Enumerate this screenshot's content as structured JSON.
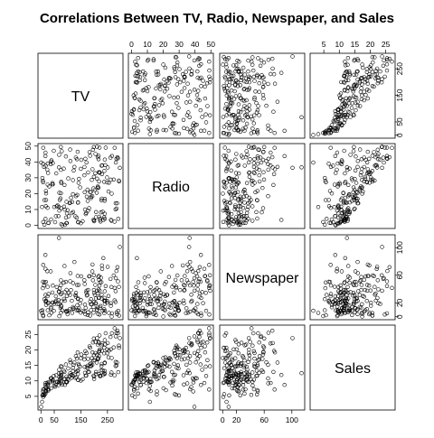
{
  "chart_data": {
    "type": "scatter",
    "title": "Correlations Between TV, Radio, Newspaper, and Sales",
    "variables": [
      "TV",
      "Radio",
      "Newspaper",
      "Sales"
    ],
    "ranges": {
      "TV": [
        0.7,
        296.4
      ],
      "Radio": [
        0,
        49.6
      ],
      "Newspaper": [
        0.3,
        114
      ],
      "Sales": [
        1.6,
        27
      ]
    },
    "ticks": {
      "TV": [
        0,
        50,
        150,
        250
      ],
      "Radio": [
        0,
        10,
        20,
        30,
        40,
        50
      ],
      "Newspaper": [
        0,
        20,
        60,
        100
      ],
      "Sales": [
        5,
        10,
        15,
        20,
        25
      ]
    },
    "axes": {
      "top": [
        {
          "panel_col": 1,
          "var": "Radio",
          "labels": [
            "0",
            "10",
            "20",
            "30",
            "40",
            "50"
          ]
        },
        {
          "panel_col": 3,
          "var": "Sales",
          "labels": [
            "5",
            "10",
            "15",
            "20",
            "25"
          ]
        }
      ],
      "bottom": [
        {
          "panel_col": 0,
          "var": "TV",
          "labels": [
            "0",
            "50",
            "150",
            "250"
          ]
        },
        {
          "panel_col": 2,
          "var": "Newspaper",
          "labels": [
            "0",
            "20",
            "60",
            "100"
          ]
        }
      ],
      "left": [
        {
          "panel_row": 1,
          "var": "Radio",
          "labels": [
            "0",
            "10",
            "20",
            "30",
            "40",
            "50"
          ]
        },
        {
          "panel_row": 3,
          "var": "Sales",
          "labels": [
            "5",
            "10",
            "15",
            "20",
            "25"
          ]
        }
      ],
      "right": [
        {
          "panel_row": 0,
          "var": "TV",
          "labels": [
            "0",
            "50",
            "150",
            "250"
          ]
        },
        {
          "panel_row": 2,
          "var": "Newspaper",
          "labels": [
            "0",
            "20",
            "60",
            "100"
          ]
        }
      ]
    },
    "observations": {
      "TV": [
        230.1,
        44.5,
        17.2,
        151.5,
        180.8,
        8.7,
        57.5,
        120.2,
        8.6,
        199.8,
        66.1,
        214.7,
        23.8,
        97.5,
        204.1,
        195.4,
        67.8,
        281.4,
        69.2,
        147.3,
        218.4,
        237.4,
        13.2,
        228.3,
        62.3,
        262.9,
        142.9,
        240.1,
        248.8,
        70.6,
        292.9,
        112.9,
        97.2,
        265.6,
        95.7,
        290.7,
        266.9,
        74.7,
        43.1,
        228,
        202.5,
        177,
        293.6,
        206.9,
        25.1,
        175.1,
        89.7,
        239.9,
        227.2,
        66.9,
        199.8,
        100.4,
        216.4,
        182.6,
        262.7,
        198.9,
        7.3,
        136.2,
        210.8,
        210.7,
        53.5,
        261.3,
        239.3,
        102.7,
        131.1,
        69,
        31.5,
        139.3,
        237.4,
        216.8,
        199.1,
        109.8,
        26.8,
        129.4,
        213.4,
        16.9,
        27.5,
        120.5,
        5.4,
        116,
        76.4,
        239.8,
        75.3,
        68.4,
        213.5,
        193.2,
        76.3,
        110.7,
        88.3,
        109.8,
        134.3,
        28.6,
        217.7,
        250.9,
        107.4,
        163.3,
        197.6,
        184.9,
        289.7,
        135.2,
        222.4,
        296.4,
        280.2,
        187.9,
        238.2,
        137.9,
        25,
        90.4,
        13.1,
        255.4,
        225.8,
        241.7,
        175.7,
        209.6,
        78.2,
        75.1,
        139.2,
        76.4,
        125.7,
        19.4,
        141.3,
        18.8,
        224,
        123.1,
        229.5,
        87.2,
        7.8,
        80.2,
        220.3,
        59.6,
        0.7,
        265.2,
        8.4,
        219.8,
        36.9,
        48.3,
        25.6,
        273.7,
        43,
        184.9,
        73.4,
        193.7,
        220.5,
        104.6,
        96.2,
        140.3,
        240.1,
        243.2,
        38,
        44.7,
        280.7,
        121,
        197.6,
        171.3,
        187.8,
        4.1,
        93.9,
        149.8,
        11.7,
        131.7,
        172.5,
        85.7,
        188.4,
        163.5,
        117.2,
        234.5,
        17.9,
        206.8,
        215.4,
        284.3,
        50,
        164.5,
        19.6,
        168.4,
        222.4,
        276.9,
        248.4,
        170.2,
        276.7,
        165.6,
        156.6,
        218.5,
        56.2,
        287.6,
        253.8,
        205,
        139.5,
        191.1,
        286,
        18.7,
        39.5,
        75.5,
        17.2,
        166.8,
        149.7,
        38.2,
        94.2,
        177,
        283.6,
        232.1
      ],
      "Radio": [
        37.8,
        39.3,
        45.9,
        41.3,
        10.8,
        48.9,
        32.8,
        19.6,
        2.1,
        2.6,
        5.8,
        24,
        35.1,
        7.6,
        32.9,
        47.7,
        36.6,
        39.6,
        20.5,
        23.9,
        27.7,
        5.1,
        15.9,
        16.9,
        12.6,
        3.5,
        29.3,
        16.7,
        27.1,
        16,
        28.3,
        17.4,
        1.5,
        20,
        1.4,
        4.1,
        43.8,
        49.4,
        26.7,
        37.7,
        22.3,
        33.4,
        27.7,
        8.4,
        25.7,
        22.5,
        9.9,
        41.5,
        15.8,
        11.7,
        3.1,
        9.6,
        41.7,
        46.2,
        28.8,
        49.4,
        28.1,
        19.2,
        49.6,
        29.5,
        2,
        42.7,
        15.5,
        29.6,
        42.8,
        9.3,
        24.6,
        14.5,
        27.5,
        43.9,
        30.6,
        14.3,
        33,
        5.7,
        24.6,
        43.7,
        1.6,
        28.5,
        29.9,
        7.7,
        26.7,
        4.1,
        20.3,
        44.5,
        43,
        18.4,
        27.5,
        40.6,
        25.5,
        47.8,
        4.9,
        1.5,
        33.5,
        36.5,
        14,
        31.6,
        3.5,
        21,
        42.3,
        41.7,
        4.3,
        36.3,
        10.1,
        17.2,
        34.3,
        46.4,
        11,
        0.3,
        0.4,
        26.9,
        8.2,
        38,
        15.4,
        20.6,
        46.8,
        35,
        14.3,
        0.8,
        36.9,
        16,
        26.8,
        21.7,
        2.4,
        34.6,
        32.3,
        11.8,
        38.9,
        0,
        49,
        12,
        39.6,
        2.9,
        27.2,
        33.5,
        38.6,
        47,
        39,
        28.9,
        25.9,
        43.9,
        17,
        35.4,
        33.2,
        5.7,
        14.8,
        1.9,
        7.3,
        49,
        40.3,
        25.8,
        13.9,
        8.4,
        23.3,
        39.7,
        21.1,
        11.6,
        43.5,
        1.3,
        36.9,
        18.4,
        18.1,
        35.8,
        18.1,
        36.8,
        14.7,
        3.4,
        37.6,
        5.2,
        23.6,
        10.6,
        11.6,
        20.9,
        20.1,
        7.1,
        3.4,
        48.9,
        30.2,
        7.8,
        2.3,
        10,
        2.6,
        5.4,
        5.7,
        43,
        21.3,
        45.1,
        2.1,
        28.7,
        13.9,
        12.1,
        41.1,
        10.8,
        4.1,
        42,
        35.6,
        3.7,
        4.9,
        9.3,
        42,
        8.6
      ],
      "Newspaper": [
        69.2,
        45.1,
        69.3,
        58.5,
        58.4,
        75,
        23.5,
        11.6,
        1,
        21.2,
        24.2,
        4,
        65.9,
        7.2,
        46,
        52.9,
        114,
        55.8,
        18.3,
        19.1,
        53.4,
        23.5,
        49.6,
        26.2,
        18.3,
        19.5,
        12.6,
        22.9,
        22.9,
        40.8,
        43.2,
        38.6,
        30,
        0.3,
        7.4,
        8.5,
        5,
        45.7,
        35.1,
        32,
        31.6,
        38.7,
        1.8,
        26.4,
        43.3,
        31.5,
        35.7,
        18.5,
        49.9,
        36.8,
        34.6,
        3.6,
        39.6,
        58.7,
        15.9,
        60,
        41.4,
        16.6,
        37.7,
        9.3,
        21.4,
        54.7,
        27.3,
        8.4,
        28.9,
        0.9,
        2.2,
        10.2,
        11,
        27.2,
        38.7,
        31.7,
        19.3,
        31.3,
        13.1,
        89.4,
        20.7,
        14.2,
        9.4,
        23.1,
        22.3,
        36.9,
        32.5,
        35.6,
        33.8,
        65.7,
        16,
        63.2,
        73.4,
        51.4,
        9.3,
        33,
        59,
        72.3,
        10.9,
        52.9,
        5.9,
        22,
        51.2,
        45.9,
        49.8,
        100.9,
        21.4,
        17.9,
        5.3,
        59,
        29.7,
        23.2,
        25.6,
        5.5,
        56.5,
        23.2,
        2.4,
        10.7,
        34.5,
        52.7,
        25.6,
        14.8,
        79.2,
        22.3,
        46.2,
        50.4,
        15.6,
        12.4,
        74.2,
        25.9,
        50.6,
        9.2,
        3.2,
        43.1,
        8.7,
        43,
        2.1,
        45.1,
        65.6,
        8.5,
        9.3,
        59.7,
        20.5,
        1.7,
        12.9,
        75.6,
        37.9,
        34.4,
        38.9,
        9,
        8.7,
        44.3,
        11.9,
        20.6,
        37,
        48.7,
        14.2,
        37.7,
        9.5,
        5.7,
        50.5,
        24.3,
        45.2,
        34.6,
        30.7,
        49.3,
        25.6,
        7.4,
        5.4,
        84.8,
        21.6,
        19.4,
        57.6,
        6.4,
        18.4,
        47.4,
        17,
        12.8,
        13.1,
        41.8,
        20.3,
        35.2,
        23.7,
        17.6,
        8.3,
        27.4,
        29.7,
        71.8,
        30,
        19.6,
        26.6,
        18.2,
        3.7,
        23.4,
        5.8,
        6,
        31.6,
        3.6,
        6,
        13.8,
        8.1,
        6.4,
        66.2,
        8.7
      ],
      "Sales": [
        22.1,
        10.4,
        9.3,
        18.5,
        12.9,
        7.2,
        11.8,
        13.2,
        4.8,
        10.6,
        8.6,
        17.4,
        9.2,
        9.7,
        19,
        22.4,
        12.5,
        24.4,
        11.3,
        14.6,
        18,
        12.5,
        5.6,
        15.5,
        9.7,
        12,
        15,
        15.9,
        18.9,
        10.5,
        21.4,
        11.9,
        9.6,
        17.4,
        9.5,
        12.8,
        25.4,
        14.7,
        10.1,
        21.5,
        16.6,
        17.1,
        20.7,
        12.9,
        8.5,
        14.9,
        10.6,
        23.2,
        14.8,
        9.7,
        11.4,
        10.7,
        22.6,
        21.2,
        20.2,
        23.7,
        5.5,
        13.2,
        23.8,
        18.4,
        8.1,
        24.2,
        15.7,
        14,
        18,
        9.3,
        9.5,
        13.4,
        18.9,
        22.3,
        18.3,
        12.4,
        8.8,
        11,
        17,
        8.7,
        6.9,
        14.2,
        5.3,
        11,
        11.8,
        12.3,
        11.3,
        13.6,
        21.7,
        15.2,
        12,
        16,
        12.9,
        16.7,
        11.2,
        7.3,
        19.4,
        22.2,
        11.5,
        16.9,
        11.7,
        15.5,
        25.4,
        17.2,
        11.7,
        23.8,
        14.8,
        14.7,
        20.7,
        19.2,
        7.2,
        8.7,
        5.3,
        19.8,
        13.4,
        21.8,
        14.1,
        15.9,
        14.6,
        12.6,
        12.2,
        9.4,
        15.9,
        6.6,
        15.5,
        7,
        11.6,
        15.2,
        19.7,
        10.6,
        6.6,
        8.8,
        24.7,
        9.7,
        1.6,
        12.7,
        5.7,
        19.6,
        10.8,
        11.6,
        9.5,
        20.8,
        9.6,
        20.7,
        10.9,
        19.2,
        20.1,
        10.4,
        11.4,
        10.3,
        13.2,
        25.4,
        10.9,
        10.1,
        16.1,
        11.6,
        16.6,
        19,
        15.6,
        3.2,
        15.3,
        10.1,
        7.3,
        12.9,
        14.4,
        13.3,
        14.9,
        18,
        11.9,
        11.9,
        8,
        12.2,
        17.1,
        15,
        8.4,
        14.5,
        7.6,
        11.7,
        11.5,
        27,
        20.2,
        11.7,
        11.8,
        12.6,
        10.5,
        12.2,
        8.7,
        26.2,
        17.6,
        22.6,
        10.3,
        17.3,
        15.9,
        6.7,
        10.8,
        9.9,
        5.9,
        19.6,
        17.3,
        7.6,
        9.7,
        12.8,
        25.5,
        13.4
      ]
    }
  }
}
